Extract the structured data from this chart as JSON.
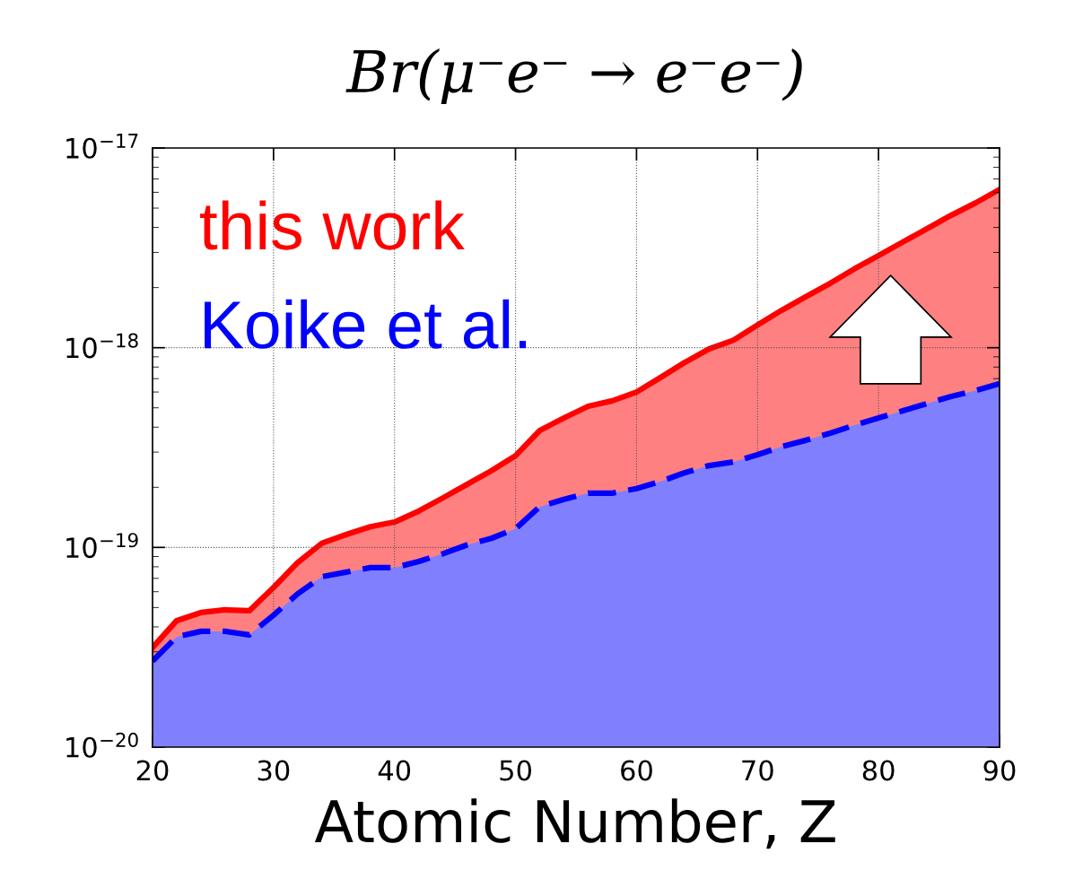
{
  "chart_data": {
    "type": "area",
    "title": "Br(μ⁻e⁻ → e⁻e⁻)",
    "xlabel": "Atomic Number, Z",
    "x": [
      20,
      22,
      24,
      26,
      28,
      30,
      32,
      34,
      36,
      38,
      40,
      42,
      44,
      46,
      48,
      50,
      52,
      54,
      56,
      58,
      60,
      62,
      64,
      66,
      68,
      70,
      72,
      74,
      76,
      78,
      80,
      82,
      84,
      86,
      88,
      90
    ],
    "series": [
      {
        "name": "this work",
        "color": "#ff0000",
        "line_style": "solid",
        "values": [
          3.15e-20,
          4.3e-20,
          4.72e-20,
          4.87e-20,
          4.82e-20,
          6.3e-20,
          8.4e-20,
          1.05e-19,
          1.16e-19,
          1.27e-19,
          1.34e-19,
          1.52e-19,
          1.77e-19,
          2.07e-19,
          2.42e-19,
          2.88e-19,
          3.85e-19,
          4.45e-19,
          5.09e-19,
          5.42e-19,
          6e-19,
          7.1e-19,
          8.45e-19,
          9.86e-19,
          1.09e-18,
          1.3e-18,
          1.54e-18,
          1.8e-18,
          2.1e-18,
          2.48e-18,
          2.89e-18,
          3.38e-18,
          3.94e-18,
          4.6e-18,
          5.3e-18,
          6.2e-18
        ]
      },
      {
        "name": "Koike et al.",
        "color": "#0000ff",
        "line_style": "dashed",
        "values": [
          2.7e-20,
          3.57e-20,
          3.8e-20,
          3.8e-20,
          3.65e-20,
          4.58e-20,
          5.86e-20,
          7.14e-20,
          7.52e-20,
          7.92e-20,
          7.92e-20,
          8.5e-20,
          9.3e-20,
          1.03e-19,
          1.11e-19,
          1.24e-19,
          1.6e-19,
          1.74e-19,
          1.87e-19,
          1.87e-19,
          1.97e-19,
          2.14e-19,
          2.37e-19,
          2.57e-19,
          2.68e-19,
          2.91e-19,
          3.2e-19,
          3.44e-19,
          3.73e-19,
          4.09e-19,
          4.45e-19,
          4.83e-19,
          5.25e-19,
          5.7e-19,
          6.1e-19,
          6.6e-19
        ]
      }
    ],
    "log": "y",
    "xlim": [
      20,
      90
    ],
    "xticks": [
      20,
      30,
      40,
      50,
      60,
      70,
      80,
      90
    ],
    "ylim": [
      1e-20,
      1e-17
    ],
    "yticks": [
      {
        "value": 1e-20,
        "label": "10$^{−20}$"
      },
      {
        "value": 1e-19,
        "label": "10$^{−19}$"
      },
      {
        "value": 1e-18,
        "label": "10$^{−18}$"
      },
      {
        "value": 1e-17,
        "label": "10$^{−17}$"
      }
    ],
    "grid": true,
    "legend": "top left"
  }
}
